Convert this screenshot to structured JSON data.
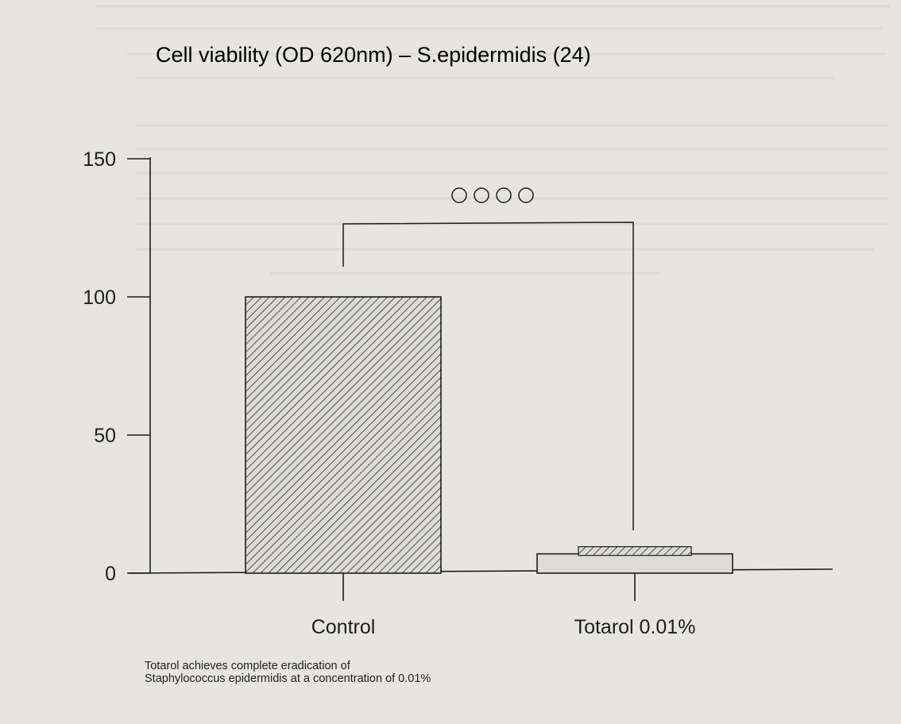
{
  "chart_data": {
    "type": "bar",
    "title": "Cell viability (OD 620nm) – S.epidermidis (24)",
    "categories": [
      "Control",
      "Totarol 0.01%"
    ],
    "values": [
      100,
      7
    ],
    "ylim": [
      0,
      150
    ],
    "yticks": [
      "0",
      "50",
      "100",
      "150"
    ],
    "xlabel": "",
    "ylabel": "",
    "grid": false,
    "significance": "OOOO",
    "bar_fill": "diagonal hatch"
  },
  "caption": {
    "line1": "Totarol achieves complete eradication of",
    "line2": "Staphylococcus epidermidis at a concentration of 0.01%"
  },
  "colors": {
    "background": "#e6e5e1",
    "ink": "#1d1d1d"
  }
}
